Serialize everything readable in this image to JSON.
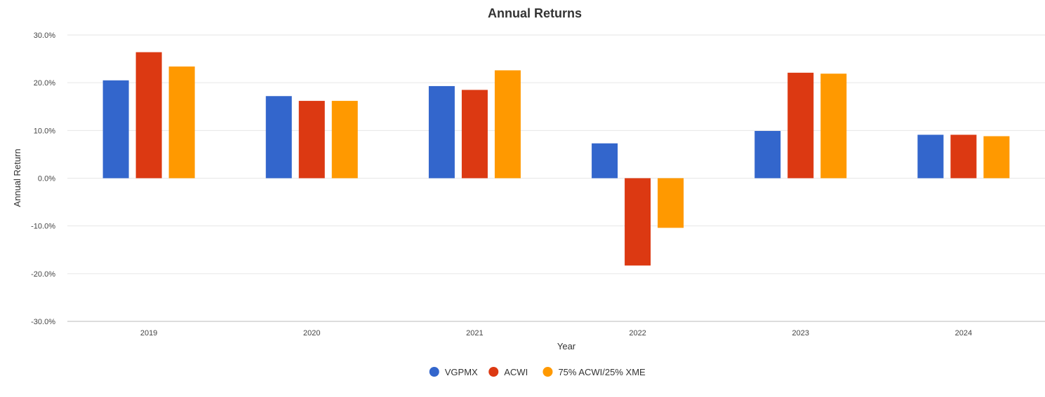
{
  "chart_data": {
    "type": "bar",
    "title": "Annual Returns",
    "xlabel": "Year",
    "ylabel": "Annual Return",
    "categories": [
      "2019",
      "2020",
      "2021",
      "2022",
      "2023",
      "2024"
    ],
    "ylim": [
      -30,
      30
    ],
    "yticks": [
      30,
      20,
      10,
      0,
      -10,
      -20,
      -30
    ],
    "ytick_labels": [
      "30.0%",
      "20.0%",
      "10.0%",
      "0.0%",
      "-10.0%",
      "-20.0%",
      "-30.0%"
    ],
    "grid": true,
    "legend_position": "bottom-center",
    "series": [
      {
        "name": "VGPMX",
        "color": "#3366cc",
        "values": [
          20.5,
          17.2,
          19.3,
          7.3,
          9.9,
          9.1
        ]
      },
      {
        "name": "ACWI",
        "color": "#dc3912",
        "values": [
          26.4,
          16.2,
          18.5,
          -18.3,
          22.1,
          9.1
        ]
      },
      {
        "name": "75% ACWI/25% XME",
        "color": "#ff9900",
        "values": [
          23.4,
          16.2,
          22.6,
          -10.4,
          21.9,
          8.8
        ]
      }
    ]
  }
}
